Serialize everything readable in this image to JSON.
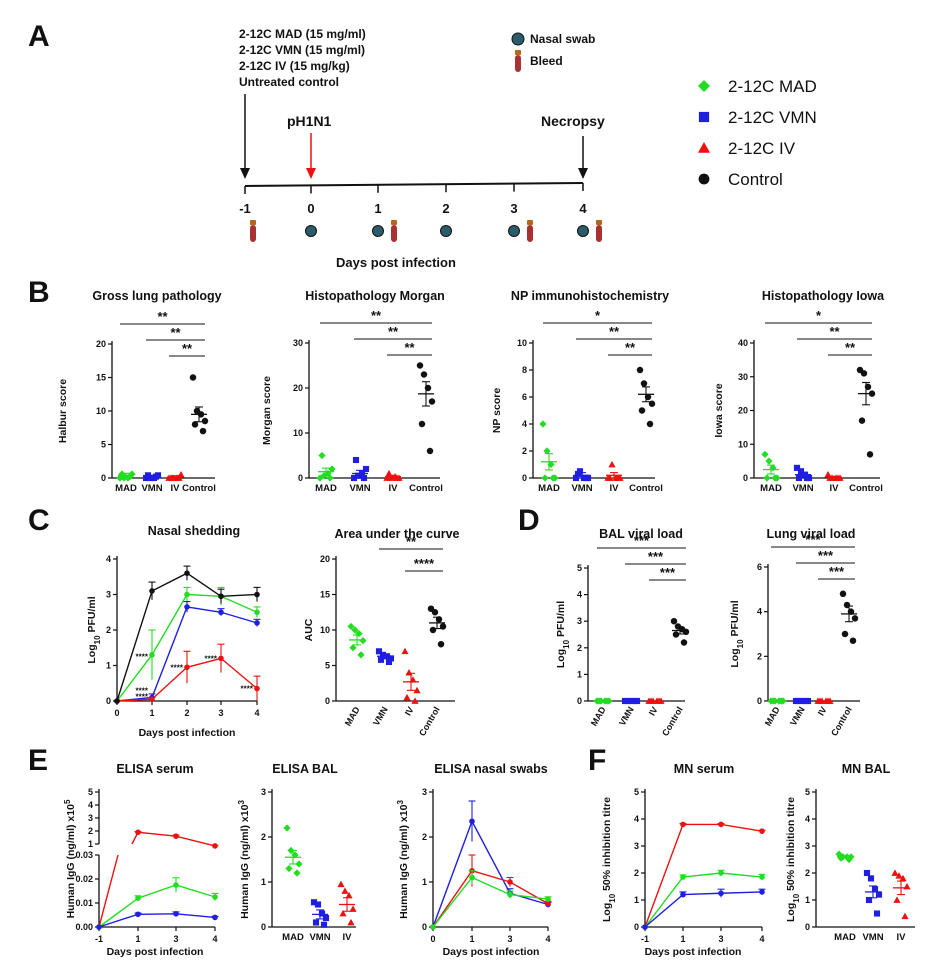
{
  "colors": {
    "MAD": "#22dd22",
    "VMN": "#1f1fe0",
    "IV": "#ee1111",
    "Control": "#111111",
    "infection": "#ee1111",
    "swab": "#2a5d6b",
    "bleed": "#b5651d"
  },
  "panel_labels": [
    "A",
    "B",
    "C",
    "D",
    "E",
    "F"
  ],
  "timeline": {
    "treatments": [
      "2-12C MAD (15 mg/ml)",
      "2-12C VMN (15 mg/ml)",
      "2-12C IV (15 mg/kg)",
      "Untreated control"
    ],
    "infection_label": "pH1N1",
    "necropsy_label": "Necropsy",
    "days": [
      "-1",
      "0",
      "1",
      "2",
      "3",
      "4"
    ],
    "xlabel": "Days post infection",
    "legend_swab": "Nasal swab",
    "legend_bleed": "Bleed",
    "swab_days": [
      "0",
      "1",
      "2",
      "3",
      "4"
    ],
    "bleed_days": [
      "-1",
      "1",
      "3",
      "4"
    ]
  },
  "legend": {
    "items": [
      {
        "label": "2-12C MAD",
        "group": "MAD",
        "marker": "diamond"
      },
      {
        "label": "2-12C VMN",
        "group": "VMN",
        "marker": "square"
      },
      {
        "label": "2-12C IV",
        "group": "IV",
        "marker": "triangle"
      },
      {
        "label": "Control",
        "group": "Control",
        "marker": "circle"
      }
    ]
  },
  "chart_data": [
    {
      "id": "gross",
      "panel": "B",
      "type": "scatter",
      "title": "Gross lung pathology",
      "ylabel": "Halbur score",
      "ylim": [
        0,
        20
      ],
      "yticks": [
        0,
        5,
        10,
        15,
        20
      ],
      "categories": [
        "MAD",
        "VMN",
        "IV",
        "Control"
      ],
      "points": {
        "MAD": [
          0,
          0,
          0,
          0.6,
          0.6,
          0.2
        ],
        "VMN": [
          0,
          0,
          0,
          0.4,
          0.4,
          0.2
        ],
        "IV": [
          0,
          0,
          0,
          0.5,
          0,
          0
        ],
        "Control": [
          15,
          10,
          9.5,
          8.5,
          8,
          7
        ]
      },
      "means": {
        "MAD": 0.4,
        "VMN": 0.2,
        "IV": 0.15,
        "Control": 9.5
      },
      "sems": {
        "MAD": 0.3,
        "VMN": 0.2,
        "IV": 0.2,
        "Control": 1.1
      },
      "significance": [
        {
          "from": "MAD",
          "label": "**"
        },
        {
          "from": "VMN",
          "label": "**"
        },
        {
          "from": "IV",
          "label": "**"
        }
      ]
    },
    {
      "id": "morgan",
      "panel": "B",
      "type": "scatter",
      "title": "Histopathology Morgan",
      "ylabel": "Morgan score",
      "ylim": [
        0,
        30
      ],
      "yticks": [
        0,
        10,
        20,
        30
      ],
      "categories": [
        "MAD",
        "VMN",
        "IV",
        "Control"
      ],
      "points": {
        "MAD": [
          0,
          0.5,
          1,
          2,
          5,
          0
        ],
        "VMN": [
          0,
          0.5,
          1,
          2,
          4,
          0
        ],
        "IV": [
          0,
          0,
          0.3,
          0,
          1,
          0
        ],
        "Control": [
          25,
          23,
          20,
          17,
          12,
          6
        ]
      },
      "means": {
        "MAD": 1.4,
        "VMN": 1.0,
        "IV": 0.3,
        "Control": 18.7
      },
      "sems": {
        "MAD": 0.8,
        "VMN": 0.7,
        "IV": 0.3,
        "Control": 2.7
      },
      "significance": [
        {
          "from": "MAD",
          "label": "**"
        },
        {
          "from": "VMN",
          "label": "**"
        },
        {
          "from": "IV",
          "label": "**"
        }
      ]
    },
    {
      "id": "np",
      "panel": "B",
      "type": "scatter",
      "title": "NP immunohistochemistry",
      "ylabel": "NP score",
      "ylim": [
        0,
        10
      ],
      "yticks": [
        0,
        2,
        4,
        6,
        8,
        10
      ],
      "categories": [
        "MAD",
        "VMN",
        "IV",
        "Control"
      ],
      "points": {
        "MAD": [
          4,
          2,
          1,
          0,
          0,
          0
        ],
        "VMN": [
          0,
          0.5,
          0,
          0,
          0.3,
          0
        ],
        "IV": [
          0,
          1,
          0,
          0,
          0,
          0
        ],
        "Control": [
          8,
          7,
          6,
          5.5,
          5,
          4
        ]
      },
      "means": {
        "MAD": 1.2,
        "VMN": 0.2,
        "IV": 0.2,
        "Control": 6.2
      },
      "sems": {
        "MAD": 0.6,
        "VMN": 0.2,
        "IV": 0.2,
        "Control": 0.55
      },
      "significance": [
        {
          "from": "MAD",
          "label": "*"
        },
        {
          "from": "VMN",
          "label": "**"
        },
        {
          "from": "IV",
          "label": "**"
        }
      ]
    },
    {
      "id": "iowa",
      "panel": "B",
      "type": "scatter",
      "title": "Histopathology Iowa",
      "ylabel": "Iowa score",
      "ylim": [
        0,
        40
      ],
      "yticks": [
        0,
        10,
        20,
        30,
        40
      ],
      "categories": [
        "MAD",
        "VMN",
        "IV",
        "Control"
      ],
      "points": {
        "MAD": [
          7,
          5,
          3,
          0,
          0,
          0
        ],
        "VMN": [
          3,
          2,
          1,
          0,
          0,
          0
        ],
        "IV": [
          1,
          0,
          0,
          0,
          0,
          0
        ],
        "Control": [
          32,
          31,
          27,
          25,
          17,
          7
        ]
      },
      "means": {
        "MAD": 2.5,
        "VMN": 1.0,
        "IV": 0.3,
        "Control": 25
      },
      "sems": {
        "MAD": 1.3,
        "VMN": 0.6,
        "IV": 0.2,
        "Control": 3.3
      },
      "significance": [
        {
          "from": "MAD",
          "label": "*"
        },
        {
          "from": "VMN",
          "label": "**"
        },
        {
          "from": "IV",
          "label": "**"
        }
      ]
    },
    {
      "id": "nasal",
      "panel": "C",
      "type": "line",
      "title": "Nasal shedding",
      "ylabel": "Log10 PFU/ml",
      "xlabel": "Days post infection",
      "x": [
        0,
        1,
        2,
        3,
        4
      ],
      "xlim": [
        0,
        4
      ],
      "xticks": [
        0,
        1,
        2,
        3,
        4
      ],
      "ylim": [
        0,
        4
      ],
      "yticks": [
        0,
        1,
        2,
        3,
        4
      ],
      "series": [
        {
          "name": "MAD",
          "values": [
            0,
            1.3,
            3.0,
            2.95,
            2.5
          ],
          "errors": [
            0,
            0.7,
            0.2,
            0.25,
            0.15
          ]
        },
        {
          "name": "VMN",
          "values": [
            0,
            0.1,
            2.65,
            2.5,
            2.2
          ],
          "errors": [
            0,
            0.1,
            0.15,
            0.1,
            0.1
          ]
        },
        {
          "name": "IV",
          "values": [
            0,
            0.05,
            0.95,
            1.2,
            0.35
          ],
          "errors": [
            0,
            0.05,
            0.45,
            0.4,
            0.35
          ]
        },
        {
          "name": "Control",
          "values": [
            0,
            3.1,
            3.6,
            2.95,
            3.0
          ],
          "errors": [
            0,
            0.25,
            0.2,
            0.2,
            0.2
          ]
        }
      ],
      "annotations": [
        {
          "x": 1,
          "y": 1.25,
          "text": "****"
        },
        {
          "x": 1,
          "y": 0.3,
          "text": "****"
        },
        {
          "x": 1,
          "y": 0.13,
          "text": "****"
        },
        {
          "x": 2,
          "y": 0.95,
          "text": "****"
        },
        {
          "x": 3,
          "y": 1.2,
          "text": "****"
        },
        {
          "x": 4,
          "y": 0.35,
          "text": "****"
        }
      ]
    },
    {
      "id": "auc",
      "panel": "C",
      "type": "scatter",
      "title": "Area under the curve",
      "ylabel": "AUC",
      "ylim": [
        0,
        20
      ],
      "yticks": [
        0,
        5,
        10,
        15,
        20
      ],
      "categories": [
        "MAD",
        "VMN",
        "IV",
        "Control"
      ],
      "points": {
        "MAD": [
          10.5,
          10,
          9.5,
          8.5,
          7.5,
          6.5
        ],
        "VMN": [
          7,
          6.5,
          6.3,
          6,
          5.8,
          5.5
        ],
        "IV": [
          7,
          4,
          3,
          1.5,
          0.5,
          0
        ],
        "Control": [
          13,
          12.5,
          11.5,
          10.5,
          10,
          8
        ]
      },
      "means": {
        "MAD": 8.6,
        "VMN": 6.3,
        "IV": 2.7,
        "Control": 11.0
      },
      "sems": {
        "MAD": 0.7,
        "VMN": 0.25,
        "IV": 1.2,
        "Control": 0.8
      },
      "rotate_labels": true,
      "significance": [
        {
          "from": "VMN",
          "label": "**"
        },
        {
          "from": "IV",
          "label": "****"
        }
      ]
    },
    {
      "id": "bal",
      "panel": "D",
      "type": "scatter",
      "title": "BAL viral load",
      "ylabel": "Log10 PFU/ml",
      "ylim": [
        0,
        5
      ],
      "yticks": [
        0,
        1,
        2,
        3,
        4,
        5
      ],
      "categories": [
        "MAD",
        "VMN",
        "IV",
        "Control"
      ],
      "points": {
        "MAD": [
          0,
          0,
          0,
          0,
          0,
          0
        ],
        "VMN": [
          0,
          0,
          0,
          0,
          0,
          0
        ],
        "IV": [
          0,
          0,
          0,
          0,
          0,
          0
        ],
        "Control": [
          3.0,
          2.8,
          2.7,
          2.6,
          2.5,
          2.2
        ]
      },
      "means": {
        "MAD": 0,
        "VMN": 0,
        "IV": 0,
        "Control": 2.65
      },
      "sems": {
        "MAD": 0,
        "VMN": 0,
        "IV": 0,
        "Control": 0.13
      },
      "rotate_labels": true,
      "significance": [
        {
          "from": "MAD",
          "label": "***"
        },
        {
          "from": "VMN",
          "label": "***"
        },
        {
          "from": "IV",
          "label": "***"
        }
      ]
    },
    {
      "id": "lung",
      "panel": "D",
      "type": "scatter",
      "title": "Lung viral load",
      "ylabel": "Log10 PFU/ml",
      "ylim": [
        0,
        6
      ],
      "yticks": [
        0,
        2,
        4,
        6
      ],
      "categories": [
        "MAD",
        "VMN",
        "IV",
        "Control"
      ],
      "points": {
        "MAD": [
          0,
          0,
          0,
          0,
          0,
          0
        ],
        "VMN": [
          0,
          0,
          0,
          0,
          0,
          0
        ],
        "IV": [
          0,
          0,
          0,
          0,
          0,
          0
        ],
        "Control": [
          4.8,
          4.3,
          4.0,
          3.7,
          3.0,
          2.7
        ]
      },
      "means": {
        "MAD": 0,
        "VMN": 0,
        "IV": 0,
        "Control": 3.9
      },
      "sems": {
        "MAD": 0,
        "VMN": 0,
        "IV": 0,
        "Control": 0.35
      },
      "rotate_labels": true,
      "significance": [
        {
          "from": "MAD",
          "label": "***"
        },
        {
          "from": "VMN",
          "label": "***"
        },
        {
          "from": "IV",
          "label": "***"
        }
      ]
    },
    {
      "id": "elisa_serum",
      "panel": "E",
      "type": "line",
      "title": "ELISA serum",
      "ylabel": "Human IgG (ng/ml) x10^5",
      "xlabel": "Days post infection",
      "x": [
        -1,
        1,
        3,
        4
      ],
      "xticks": [
        -1,
        1,
        3,
        4
      ],
      "y_lower_ticks": [
        0.0,
        0.01,
        0.02,
        0.03
      ],
      "y_upper_ticks": [
        1,
        2,
        3,
        4,
        5
      ],
      "series": [
        {
          "name": "IV",
          "values": [
            0,
            1.9,
            1.6,
            0.85
          ],
          "errors": [
            0,
            0.05,
            0.08,
            0.05
          ]
        },
        {
          "name": "MAD",
          "values": [
            0,
            0.012,
            0.0175,
            0.0125
          ],
          "errors": [
            0,
            0.001,
            0.003,
            0.0015
          ]
        },
        {
          "name": "VMN",
          "values": [
            0,
            0.0053,
            0.0055,
            0.004
          ],
          "errors": [
            0,
            0.0005,
            0.0008,
            0.0004
          ]
        }
      ]
    },
    {
      "id": "elisa_bal",
      "panel": "E",
      "type": "scatter",
      "title": "ELISA BAL",
      "ylabel": "Human IgG (ng/ml) x10^3",
      "ylim": [
        0,
        3
      ],
      "yticks": [
        0,
        1,
        2,
        3
      ],
      "categories": [
        "MAD",
        "VMN",
        "IV"
      ],
      "points": {
        "MAD": [
          2.2,
          1.7,
          1.6,
          1.4,
          1.3,
          1.2
        ],
        "VMN": [
          0.55,
          0.5,
          0.3,
          0.2,
          0.1,
          0.05
        ],
        "IV": [
          0.95,
          0.8,
          0.7,
          0.4,
          0.3,
          0.1
        ]
      },
      "means": {
        "MAD": 1.55,
        "VMN": 0.28,
        "IV": 0.5
      },
      "sems": {
        "MAD": 0.15,
        "VMN": 0.1,
        "IV": 0.15
      },
      "significance": []
    },
    {
      "id": "elisa_nasal",
      "panel": "E",
      "type": "line",
      "title": "ELISA nasal swabs",
      "ylabel": "Human IgG (ng/ml) x10^3",
      "xlabel": "Days post infection",
      "x": [
        0,
        1,
        3,
        4
      ],
      "xlim": [
        0,
        4
      ],
      "xticks": [
        0,
        1,
        3,
        4
      ],
      "ylim": [
        0,
        3
      ],
      "yticks": [
        0,
        1,
        2,
        3
      ],
      "series": [
        {
          "name": "VMN",
          "values": [
            0,
            2.35,
            0.75,
            0.5
          ],
          "errors": [
            0,
            0.45,
            0.1,
            0.05
          ]
        },
        {
          "name": "IV",
          "values": [
            0,
            1.25,
            1.0,
            0.52
          ],
          "errors": [
            0,
            0.35,
            0.1,
            0.05
          ]
        },
        {
          "name": "MAD",
          "values": [
            0,
            1.1,
            0.72,
            0.62
          ],
          "errors": [
            0,
            0.15,
            0.08,
            0.05
          ]
        }
      ]
    },
    {
      "id": "mn_serum",
      "panel": "F",
      "type": "line",
      "title": "MN serum",
      "ylabel": "Log10 50% inhibition titre",
      "xlabel": "Days post infection",
      "x": [
        -1,
        1,
        3,
        4
      ],
      "xticks": [
        -1,
        1,
        3,
        4
      ],
      "ylim": [
        0,
        5
      ],
      "yticks": [
        0,
        1,
        2,
        3,
        4,
        5
      ],
      "series": [
        {
          "name": "IV",
          "values": [
            0,
            3.8,
            3.8,
            3.55
          ],
          "errors": [
            0,
            0.03,
            0.03,
            0.03
          ]
        },
        {
          "name": "MAD",
          "values": [
            0,
            1.85,
            2.0,
            1.85
          ],
          "errors": [
            0,
            0.08,
            0.1,
            0.1
          ]
        },
        {
          "name": "VMN",
          "values": [
            0,
            1.2,
            1.25,
            1.3
          ],
          "errors": [
            0,
            0.1,
            0.15,
            0.1
          ]
        }
      ]
    },
    {
      "id": "mn_bal",
      "panel": "F",
      "type": "scatter",
      "title": "MN BAL",
      "ylabel": "Log10 50% inhibition titre",
      "ylim": [
        0,
        5
      ],
      "yticks": [
        0,
        1,
        2,
        3,
        4,
        5
      ],
      "categories": [
        "MAD",
        "VMN",
        "IV"
      ],
      "points": {
        "MAD": [
          2.7,
          2.6,
          2.6,
          2.6,
          2.55,
          2.5
        ],
        "VMN": [
          2.0,
          1.8,
          1.4,
          1.2,
          1.0,
          0.5
        ],
        "IV": [
          2.0,
          1.9,
          1.8,
          1.5,
          1.0,
          0.4
        ]
      },
      "means": {
        "MAD": 2.6,
        "VMN": 1.3,
        "IV": 1.45
      },
      "sems": {
        "MAD": 0.03,
        "VMN": 0.22,
        "IV": 0.25
      },
      "significance": []
    }
  ]
}
